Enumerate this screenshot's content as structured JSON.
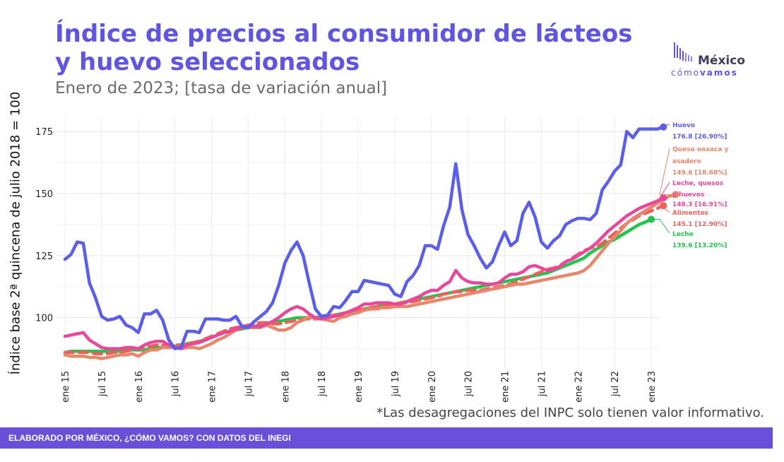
{
  "title": "Índice de precios al consumidor de lácteos y huevo seleccionados",
  "subtitle": "Enero de 2023; [tasa de variación anual]",
  "logo": {
    "name": "México",
    "tag_a": "cómo",
    "tag_b": "vamos"
  },
  "note": "*Las desagregaciones del INPC solo tienen valor informativo.",
  "footer": "ELABORADO POR MÉXICO, ¿CÓMO VAMOS? CON DATOS DEL INEGI",
  "colors": {
    "title": "#5f55e0",
    "huevo": "#5a5ee8",
    "queso": "#e8866a",
    "leche_quesos_huevos": "#e8479b",
    "alimentos": "#f0605a",
    "leche": "#22c44c",
    "footer": "#6a4fd8"
  },
  "chart_data": {
    "type": "line",
    "title": "Índice de precios al consumidor de lácteos y huevo seleccionados",
    "subtitle": "Enero de 2023; [tasa de variación anual]",
    "ylabel": "Índice base 2ª quincena de julio 2018 = 100",
    "xlabel": "",
    "ylim": [
      80,
      181
    ],
    "yticks": [
      100,
      125,
      150,
      175
    ],
    "x_tick_labels": [
      "ene 15",
      "jul 15",
      "ene 16",
      "jul 16",
      "ene 17",
      "jul 17",
      "ene 18",
      "jul 18",
      "ene 19",
      "jul 19",
      "ene 20",
      "jul 20",
      "ene 21",
      "jul 21",
      "ene 22",
      "jul 22",
      "ene 23"
    ],
    "x_start": "2015-01",
    "x_end": "2023-01",
    "grid": true,
    "series": [
      {
        "name": "Huevo",
        "value_label": "176.8 [26.90%]",
        "color_key": "huevo",
        "dashed": false,
        "values": [
          123.5,
          125.5,
          130.5,
          130,
          114,
          108,
          100.5,
          99,
          99.5,
          100.5,
          97,
          96,
          94,
          101.5,
          101.5,
          103,
          99,
          91,
          87.5,
          88,
          94.5,
          94.5,
          94,
          99.5,
          99.5,
          99.5,
          99,
          99,
          100.5,
          96.5,
          96,
          98.5,
          100.5,
          102.5,
          106,
          113,
          122,
          127,
          130.5,
          125,
          114,
          103.5,
          100.5,
          101,
          104.5,
          104,
          107,
          110.5,
          110.5,
          115,
          114.5,
          114,
          113.5,
          113,
          109.5,
          108.5,
          114.5,
          117,
          121,
          129,
          129,
          127.5,
          137,
          144.5,
          162,
          143.5,
          133.5,
          129,
          124,
          120,
          122.5,
          129,
          134.5,
          129,
          131,
          142,
          146.5,
          140.5,
          130.5,
          128,
          131,
          133,
          137.5,
          139,
          140,
          140,
          139.5,
          142,
          151.5,
          155,
          159,
          161.5,
          175,
          172.5,
          176,
          176,
          176,
          176,
          176.8
        ]
      },
      {
        "name": "Queso oaxaca y asadero",
        "value_label": "149.6 [18.68%]",
        "color_key": "queso",
        "dashed": false,
        "values": [
          85,
          84.5,
          84.5,
          84.5,
          84,
          84,
          83.5,
          84,
          84.5,
          85,
          85,
          85.5,
          84.5,
          86,
          87,
          87,
          88,
          88,
          88,
          87.5,
          88,
          88,
          87.5,
          88.5,
          89.5,
          91,
          92,
          93.5,
          95,
          96,
          96,
          96,
          96,
          97,
          96,
          95,
          95,
          96,
          98,
          99,
          100.5,
          99.5,
          99.5,
          99,
          98.5,
          100,
          100.5,
          101.5,
          102,
          103,
          103.5,
          103.5,
          104,
          104,
          104.5,
          104.5,
          104.5,
          105,
          105.5,
          106,
          106.5,
          107,
          107.5,
          108,
          108.5,
          109,
          109.5,
          110,
          110.5,
          111,
          111.5,
          112,
          112.5,
          113,
          113.5,
          113.5,
          114,
          114.5,
          115,
          115.5,
          116,
          116.5,
          117,
          117.5,
          118,
          119,
          121,
          124,
          127,
          130,
          132.5,
          135,
          138,
          140,
          141.5,
          143,
          144.5,
          146,
          147.5,
          149,
          149.6
        ]
      },
      {
        "name": "Leche, quesos y huevos",
        "value_label": "148.3 [16.91%]",
        "color_key": "leche_quesos_huevos",
        "dashed": false,
        "values": [
          92.5,
          93,
          93.5,
          94,
          91,
          89.5,
          88,
          87.5,
          87.5,
          87.5,
          88,
          88,
          87.5,
          89,
          90,
          90.5,
          90.5,
          89,
          88,
          87.5,
          89,
          89.5,
          90,
          91,
          92,
          93,
          94,
          94.5,
          95.5,
          96,
          96.5,
          96.5,
          96.5,
          97.5,
          98.5,
          100,
          102,
          103.5,
          104.5,
          103.5,
          101.5,
          100,
          99.5,
          100,
          100.5,
          101,
          102,
          103,
          104,
          105.5,
          105.5,
          106,
          106,
          106,
          105.5,
          105.5,
          106.5,
          107.5,
          108.5,
          110,
          111,
          111,
          113,
          114.5,
          119,
          116,
          114.5,
          114,
          114,
          113.5,
          113.5,
          114,
          116,
          117.5,
          117.5,
          118.5,
          120.5,
          121,
          120,
          119,
          119.5,
          120.5,
          122.5,
          123.5,
          125,
          126.5,
          128,
          130,
          132.5,
          135,
          137,
          139,
          141,
          142.5,
          144,
          145,
          146,
          147,
          148.3
        ]
      },
      {
        "name": "Alimentos",
        "value_label": "145.1 [12.90%]",
        "color_key": "alimentos",
        "dashed": true,
        "values": [
          86,
          86,
          86,
          86,
          86,
          85.5,
          85.5,
          85.5,
          86,
          86,
          86.5,
          87,
          87.5,
          88,
          88.5,
          89,
          89,
          89,
          89,
          89,
          89.5,
          90,
          90.5,
          91.5,
          92.5,
          93.5,
          94.5,
          95.5,
          96,
          96.5,
          97,
          97.5,
          98,
          98,
          97.5,
          97.5,
          98,
          98.5,
          99,
          99.5,
          99.5,
          99.5,
          100,
          100.5,
          101,
          101.5,
          102,
          102.5,
          103,
          103.5,
          104,
          104.5,
          105,
          105,
          105.5,
          106,
          106,
          106.5,
          107,
          107.5,
          108,
          108.5,
          109.5,
          110,
          110.5,
          110.5,
          111,
          111,
          111,
          111.5,
          112,
          112.5,
          113,
          113.5,
          114.5,
          115.5,
          116.5,
          117.5,
          118.5,
          119.5,
          120,
          121,
          122.5,
          124,
          125.5,
          127,
          128,
          128.5,
          130,
          132,
          134,
          136,
          138,
          139.5,
          141,
          142,
          143,
          144,
          145.1
        ]
      },
      {
        "name": "Leche",
        "value_label": "139.6 [13.20%]",
        "color_key": "leche",
        "dashed": false,
        "values": [
          86,
          86.5,
          86.5,
          86.5,
          86.5,
          86.5,
          86.5,
          86.5,
          86.5,
          86.5,
          87,
          87,
          87,
          87,
          87.5,
          88,
          88,
          88.5,
          88.5,
          89,
          89.5,
          90,
          90.5,
          91,
          92,
          93,
          94,
          94.5,
          95,
          95.5,
          96,
          96.5,
          97,
          97.5,
          98,
          98.5,
          99,
          99.5,
          100,
          100,
          100,
          100,
          100.5,
          100.5,
          101,
          101.5,
          102,
          102.5,
          103,
          103.5,
          104,
          104.5,
          105,
          105,
          105.5,
          106,
          106.5,
          107,
          107.5,
          108,
          108.5,
          109,
          109.5,
          110,
          110.5,
          111,
          111.5,
          112,
          112.5,
          113,
          113.5,
          114,
          114.5,
          115,
          115.5,
          116,
          116.5,
          117,
          117.5,
          118,
          119,
          120,
          121,
          122,
          123,
          124,
          126,
          127.5,
          129,
          130.5,
          131.5,
          133,
          134.5,
          136,
          137.5,
          138.5,
          139.6
        ]
      }
    ]
  }
}
